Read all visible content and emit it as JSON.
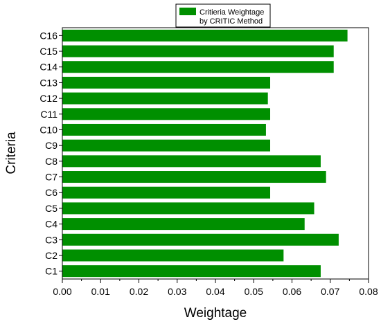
{
  "chart_data": {
    "type": "bar",
    "orientation": "horizontal",
    "categories": [
      "C1",
      "C2",
      "C3",
      "C4",
      "C5",
      "C6",
      "C7",
      "C8",
      "C9",
      "C10",
      "C11",
      "C12",
      "C13",
      "C14",
      "C15",
      "C16"
    ],
    "series": [
      {
        "name": "Critieria Weightage by CRITIC Method",
        "legend_lines": [
          "Critieria Weightage",
          "by CRITIC Method"
        ],
        "values": [
          0.0675,
          0.0578,
          0.0722,
          0.0633,
          0.0658,
          0.0543,
          0.0689,
          0.0675,
          0.0543,
          0.0532,
          0.0543,
          0.0537,
          0.0543,
          0.0709,
          0.0709,
          0.0745
        ],
        "color": "#008f00"
      }
    ],
    "xlabel": "Weightage",
    "ylabel": "Criteria",
    "xlim": [
      0.0,
      0.08
    ],
    "xticks": [
      "0.00",
      "0.01",
      "0.02",
      "0.03",
      "0.04",
      "0.05",
      "0.06",
      "0.07",
      "0.08"
    ],
    "grid": false,
    "legend_position": "top-center"
  }
}
